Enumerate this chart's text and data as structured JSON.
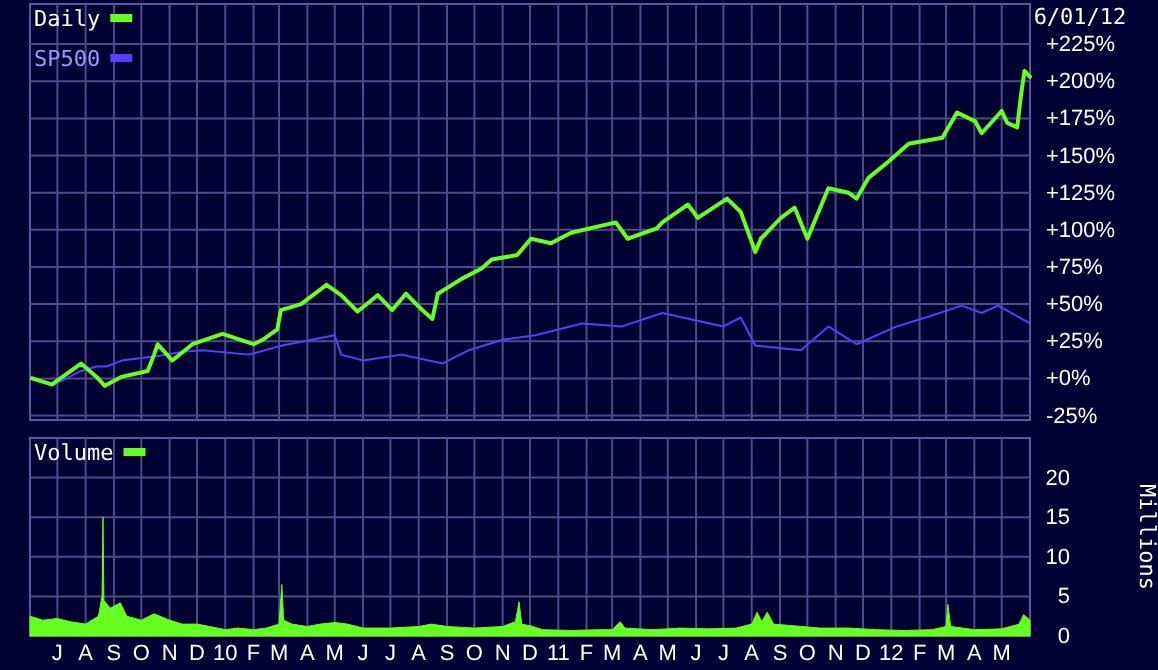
{
  "chart_data": [
    {
      "type": "line",
      "legend": "top left",
      "grid": true,
      "tick_labels": "y",
      "annotations": [
        "6/01/12"
      ],
      "xlim": [
        "2009-06-01",
        "2012-06-01"
      ],
      "xticks": [
        {
          "value": "2009-07-01",
          "label": null
        },
        {
          "value": "2009-08-01",
          "label": null
        },
        {
          "value": "2009-09-01",
          "label": null
        },
        {
          "value": "2009-10-01",
          "label": null
        },
        {
          "value": "2009-11-01",
          "label": null
        },
        {
          "value": "2009-12-01",
          "label": null
        },
        {
          "value": "2010-01-01",
          "label": null
        },
        {
          "value": "2010-02-01",
          "label": null
        },
        {
          "value": "2010-03-01",
          "label": null
        },
        {
          "value": "2010-04-01",
          "label": null
        },
        {
          "value": "2010-05-01",
          "label": null
        },
        {
          "value": "2010-06-01",
          "label": null
        },
        {
          "value": "2010-07-01",
          "label": null
        },
        {
          "value": "2010-08-01",
          "label": null
        },
        {
          "value": "2010-09-01",
          "label": null
        },
        {
          "value": "2010-10-01",
          "label": null
        },
        {
          "value": "2010-11-01",
          "label": null
        },
        {
          "value": "2010-12-01",
          "label": null
        },
        {
          "value": "2011-01-01",
          "label": null
        },
        {
          "value": "2011-02-01",
          "label": null
        },
        {
          "value": "2011-03-01",
          "label": null
        },
        {
          "value": "2011-04-01",
          "label": null
        },
        {
          "value": "2011-05-01",
          "label": null
        },
        {
          "value": "2011-06-01",
          "label": null
        },
        {
          "value": "2011-07-01",
          "label": null
        },
        {
          "value": "2011-08-01",
          "label": null
        },
        {
          "value": "2011-09-01",
          "label": null
        },
        {
          "value": "2011-10-01",
          "label": null
        },
        {
          "value": "2011-11-01",
          "label": null
        },
        {
          "value": "2011-12-01",
          "label": null
        },
        {
          "value": "2012-01-01",
          "label": null
        },
        {
          "value": "2012-02-01",
          "label": null
        },
        {
          "value": "2012-03-01",
          "label": null
        },
        {
          "value": "2012-04-01",
          "label": null
        },
        {
          "value": "2012-05-01",
          "label": null
        }
      ],
      "ylim": [
        -28,
        252
      ],
      "yticks": [
        {
          "value": -25,
          "label": "-25%"
        },
        {
          "value": 0,
          "label": "+0%"
        },
        {
          "value": 25,
          "label": "+25%"
        },
        {
          "value": 50,
          "label": "+50%"
        },
        {
          "value": 75,
          "label": "+75%"
        },
        {
          "value": 100,
          "label": "+100%"
        },
        {
          "value": 125,
          "label": "+125%"
        },
        {
          "value": 150,
          "label": "+150%"
        },
        {
          "value": 175,
          "label": "+175%"
        },
        {
          "value": 200,
          "label": "+200%"
        },
        {
          "value": 225,
          "label": "+225%"
        }
      ],
      "series": [
        {
          "name": "Daily",
          "color": "#66ff22",
          "x": [
            "2009-06-03",
            "2009-06-25",
            "2009-07-27",
            "2009-08-13",
            "2009-08-22",
            "2009-09-09",
            "2009-10-08",
            "2009-10-15",
            "2009-10-19",
            "2009-11-04",
            "2009-11-26",
            "2009-12-29",
            "2010-02-01",
            "2010-02-11",
            "2010-02-27",
            "2010-03-03",
            "2010-03-25",
            "2010-04-22",
            "2010-05-08",
            "2010-05-26",
            "2010-06-17",
            "2010-07-03",
            "2010-07-18",
            "2010-08-05",
            "2010-08-16",
            "2010-08-22",
            "2010-09-17",
            "2010-10-09",
            "2010-10-20",
            "2010-11-17",
            "2010-12-02",
            "2010-12-24",
            "2011-01-15",
            "2011-03-05",
            "2011-03-18",
            "2011-04-19",
            "2011-04-25",
            "2011-05-23",
            "2011-06-03",
            "2011-07-05",
            "2011-07-20",
            "2011-08-05",
            "2011-08-11",
            "2011-09-02",
            "2011-09-17",
            "2011-10-01",
            "2011-10-24",
            "2011-11-15",
            "2011-11-24",
            "2011-12-07",
            "2011-12-29",
            "2012-01-20",
            "2012-02-26",
            "2012-03-13",
            "2012-04-02",
            "2012-04-09",
            "2012-05-01",
            "2012-05-07",
            "2012-05-18",
            "2012-05-22",
            "2012-05-26",
            "2012-06-01"
          ],
          "values": [
            0,
            -4,
            10,
            1,
            -5,
            1,
            5,
            16,
            23,
            12,
            23,
            30,
            23,
            26,
            33,
            46,
            50,
            63,
            56,
            45,
            56,
            46,
            57,
            46,
            40,
            57,
            67,
            74,
            80,
            83,
            94,
            91,
            98,
            105,
            94,
            101,
            105,
            117,
            108,
            121,
            112,
            85,
            94,
            108,
            115,
            94,
            128,
            125,
            121,
            135,
            146,
            158,
            162,
            179,
            173,
            165,
            180,
            172,
            169,
            190,
            207,
            203
          ]
        },
        {
          "name": "SP500",
          "color": "#5c3cff",
          "x": [
            "2009-06-03",
            "2009-06-25",
            "2009-07-27",
            "2009-08-13",
            "2009-08-24",
            "2009-09-09",
            "2009-10-19",
            "2009-11-15",
            "2009-12-07",
            "2010-01-27",
            "2010-03-03",
            "2010-05-01",
            "2010-05-08",
            "2010-06-01",
            "2010-07-13",
            "2010-08-27",
            "2010-09-25",
            "2010-11-01",
            "2010-12-07",
            "2011-01-27",
            "2011-03-12",
            "2011-04-25",
            "2011-07-01",
            "2011-07-20",
            "2011-08-05",
            "2011-09-24",
            "2011-10-24",
            "2011-11-24",
            "2012-01-07",
            "2012-02-13",
            "2012-03-18",
            "2012-04-09",
            "2012-04-27",
            "2012-06-01"
          ],
          "values": [
            1,
            -5,
            5,
            8,
            8,
            12,
            15,
            18,
            19,
            16,
            22,
            29,
            16,
            12,
            16,
            10,
            19,
            26,
            29,
            37,
            35,
            44,
            35,
            41,
            22,
            19,
            35,
            23,
            35,
            42,
            49,
            44,
            49,
            37
          ]
        }
      ]
    },
    {
      "type": "area",
      "legend": "top left",
      "grid": true,
      "ylabel": "Millions",
      "xlim": [
        "2009-06-01",
        "2012-06-01"
      ],
      "xticks": [
        {
          "value": "2009-07-01",
          "label": "J"
        },
        {
          "value": "2009-08-01",
          "label": "A"
        },
        {
          "value": "2009-09-01",
          "label": "S"
        },
        {
          "value": "2009-10-01",
          "label": "O"
        },
        {
          "value": "2009-11-01",
          "label": "N"
        },
        {
          "value": "2009-12-01",
          "label": "D"
        },
        {
          "value": "2010-01-01",
          "label": "10"
        },
        {
          "value": "2010-02-01",
          "label": "F"
        },
        {
          "value": "2010-03-01",
          "label": "M"
        },
        {
          "value": "2010-04-01",
          "label": "A"
        },
        {
          "value": "2010-05-01",
          "label": "M"
        },
        {
          "value": "2010-06-01",
          "label": "J"
        },
        {
          "value": "2010-07-01",
          "label": "J"
        },
        {
          "value": "2010-08-01",
          "label": "A"
        },
        {
          "value": "2010-09-01",
          "label": "S"
        },
        {
          "value": "2010-10-01",
          "label": "O"
        },
        {
          "value": "2010-11-01",
          "label": "N"
        },
        {
          "value": "2010-12-01",
          "label": "D"
        },
        {
          "value": "2011-01-01",
          "label": "11"
        },
        {
          "value": "2011-02-01",
          "label": "F"
        },
        {
          "value": "2011-03-01",
          "label": "M"
        },
        {
          "value": "2011-04-01",
          "label": "A"
        },
        {
          "value": "2011-05-01",
          "label": "M"
        },
        {
          "value": "2011-06-01",
          "label": "J"
        },
        {
          "value": "2011-07-01",
          "label": "J"
        },
        {
          "value": "2011-08-01",
          "label": "A"
        },
        {
          "value": "2011-09-01",
          "label": "S"
        },
        {
          "value": "2011-10-01",
          "label": "O"
        },
        {
          "value": "2011-11-01",
          "label": "N"
        },
        {
          "value": "2011-12-01",
          "label": "D"
        },
        {
          "value": "2012-01-01",
          "label": "12"
        },
        {
          "value": "2012-02-01",
          "label": "F"
        },
        {
          "value": "2012-03-01",
          "label": "M"
        },
        {
          "value": "2012-04-01",
          "label": "A"
        },
        {
          "value": "2012-05-01",
          "label": "M"
        }
      ],
      "ylim": [
        0,
        25
      ],
      "yticks": [
        0,
        5,
        10,
        15,
        20
      ],
      "series": [
        {
          "name": "Volume",
          "color": "#66ff22",
          "x": [
            "2009-06-01",
            "2009-06-15",
            "2009-07-01",
            "2009-07-15",
            "2009-08-01",
            "2009-08-15",
            "2009-08-19",
            "2009-08-20",
            "2009-08-21",
            "2009-08-28",
            "2009-09-08",
            "2009-09-15",
            "2009-10-01",
            "2009-10-15",
            "2009-11-01",
            "2009-11-15",
            "2009-12-01",
            "2009-12-15",
            "2010-01-01",
            "2010-01-15",
            "2010-02-01",
            "2010-02-15",
            "2010-03-01",
            "2010-03-04",
            "2010-03-06",
            "2010-03-15",
            "2010-04-01",
            "2010-04-15",
            "2010-05-01",
            "2010-05-15",
            "2010-06-01",
            "2010-07-01",
            "2010-08-01",
            "2010-08-15",
            "2010-09-01",
            "2010-10-01",
            "2010-11-01",
            "2010-11-15",
            "2010-11-19",
            "2010-11-22",
            "2010-12-01",
            "2010-12-15",
            "2011-01-15",
            "2011-02-15",
            "2011-03-01",
            "2011-03-10",
            "2011-03-15",
            "2011-04-15",
            "2011-05-15",
            "2011-06-15",
            "2011-07-15",
            "2011-08-01",
            "2011-08-07",
            "2011-08-12",
            "2011-08-18",
            "2011-08-25",
            "2011-09-15",
            "2011-10-15",
            "2011-11-15",
            "2011-12-15",
            "2012-01-15",
            "2012-02-15",
            "2012-03-01",
            "2012-03-03",
            "2012-03-06",
            "2012-04-01",
            "2012-05-01",
            "2012-05-20",
            "2012-05-25",
            "2012-06-01"
          ],
          "values": [
            2.5,
            2.0,
            2.2,
            1.8,
            1.5,
            2.5,
            5,
            15,
            4.5,
            3.5,
            4.2,
            2.5,
            2,
            2.8,
            2,
            1.5,
            1.5,
            1.2,
            0.8,
            1,
            0.8,
            1,
            1.5,
            6.5,
            2,
            1.5,
            1.2,
            1.5,
            1.7,
            1.5,
            1.0,
            1.0,
            1.2,
            1.5,
            1.2,
            1.0,
            1.2,
            1.8,
            4.3,
            1.5,
            1.3,
            0.8,
            0.7,
            0.8,
            0.8,
            1.8,
            1,
            0.8,
            1.0,
            0.9,
            1.0,
            1.5,
            3.0,
            1.8,
            3.0,
            1.5,
            1.3,
            1.0,
            1.0,
            0.8,
            0.7,
            0.8,
            1.2,
            4,
            1.2,
            0.8,
            0.9,
            1.5,
            2.7,
            2.0
          ]
        }
      ]
    }
  ]
}
